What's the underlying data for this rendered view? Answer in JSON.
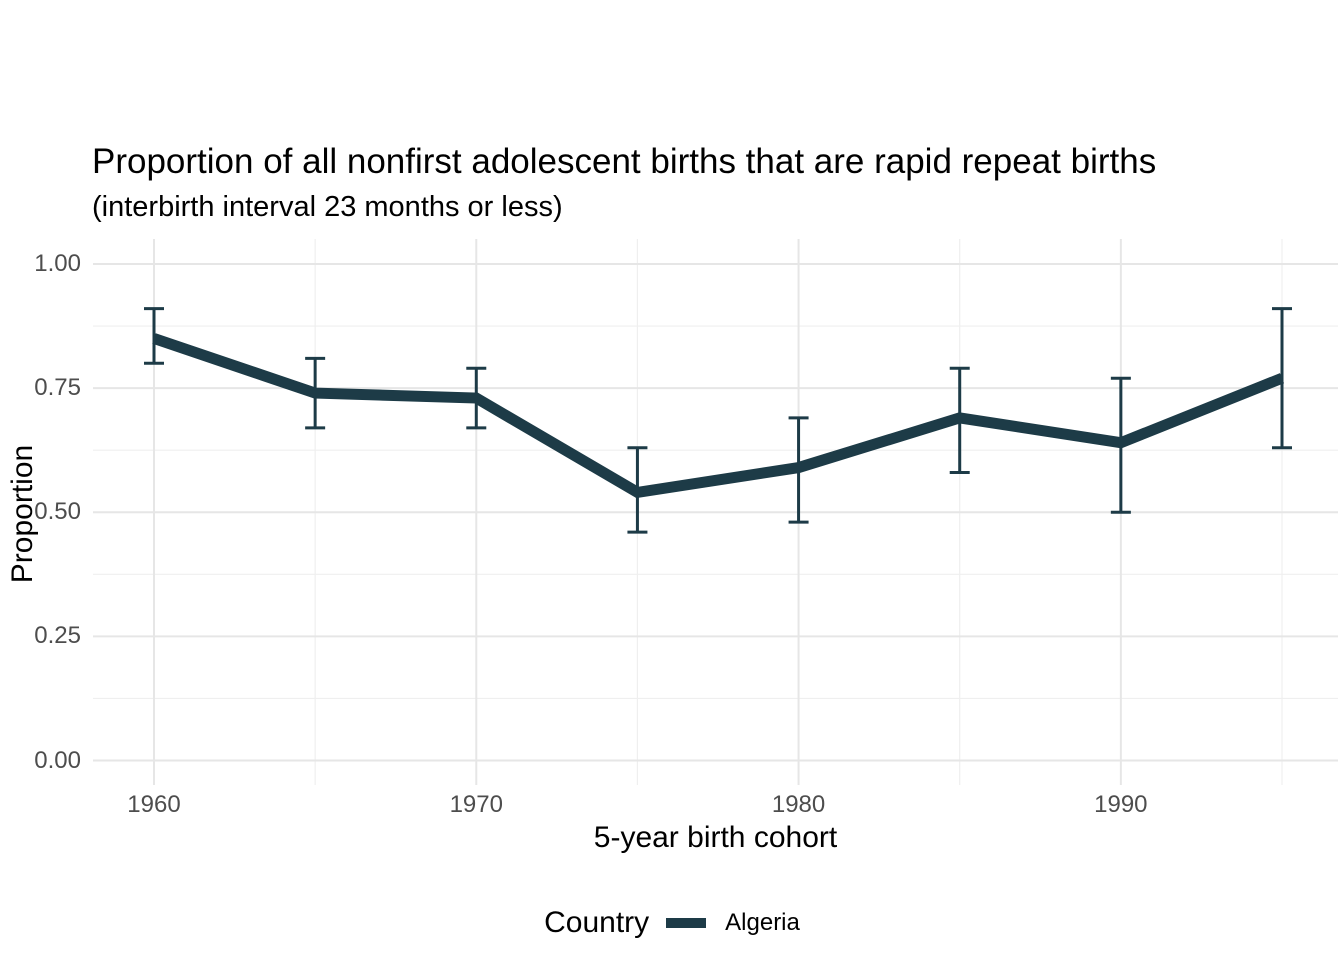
{
  "page": {
    "background": "#ffffff"
  },
  "colors": {
    "grid_major": "#e6e6e6",
    "grid_minor": "#efefef",
    "tick_label": "#4d4d4d",
    "text": "#000000",
    "series": "#1d3b47"
  },
  "chart_data": {
    "type": "line",
    "title": "Proportion of all nonfirst adolescent births that are rapid repeat births",
    "subtitle": "(interbirth interval 23 months or less)",
    "xlabel": "5-year birth cohort",
    "ylabel": "Proportion",
    "xlim": [
      1958.1,
      1996.8
    ],
    "ylim": [
      -0.05,
      1.05
    ],
    "grid": true,
    "x_major_ticks": [
      1960,
      1970,
      1980,
      1990
    ],
    "x_minor_ticks": [
      1965,
      1975,
      1985,
      1995
    ],
    "x_tick_labels": [
      "1960",
      "1970",
      "1980",
      "1990"
    ],
    "y_major_ticks": [
      0.0,
      0.25,
      0.5,
      0.75,
      1.0
    ],
    "y_minor_ticks": [
      0.125,
      0.375,
      0.625,
      0.875
    ],
    "y_tick_labels": [
      "0.00",
      "0.25",
      "0.50",
      "0.75",
      "1.00"
    ],
    "legend": {
      "title": "Country",
      "position": "bottom",
      "entries": [
        {
          "label": "Algeria",
          "color": "#1d3b47"
        }
      ]
    },
    "series": [
      {
        "name": "Algeria",
        "color": "#1d3b47",
        "x": [
          1960,
          1965,
          1970,
          1975,
          1980,
          1985,
          1990,
          1995
        ],
        "y": [
          0.85,
          0.74,
          0.73,
          0.54,
          0.59,
          0.69,
          0.64,
          0.77
        ],
        "ci_lower": [
          0.8,
          0.67,
          0.67,
          0.46,
          0.48,
          0.58,
          0.5,
          0.63
        ],
        "ci_upper": [
          0.91,
          0.81,
          0.79,
          0.63,
          0.69,
          0.79,
          0.77,
          0.91
        ]
      }
    ]
  }
}
